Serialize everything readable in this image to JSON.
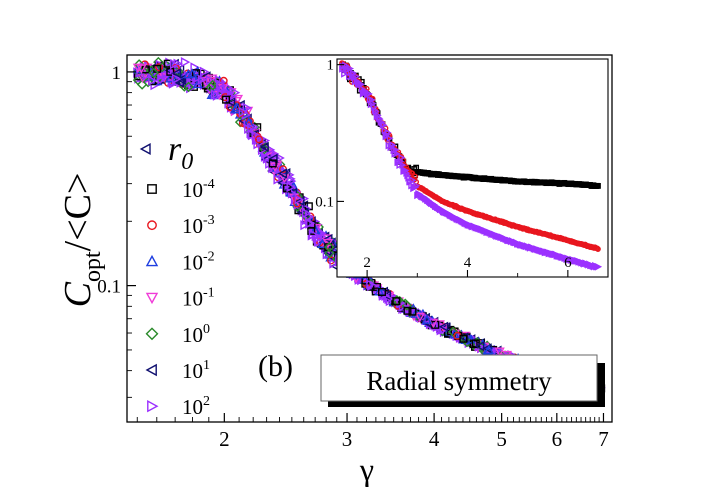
{
  "chart_data": [
    {
      "type": "scatter",
      "panel_label": "(b)",
      "annotation": "Radial symmetry",
      "xlabel": "γ",
      "ylabel": {
        "C": "C",
        "sub": "opt",
        "rest": "/<C>"
      },
      "xscale": "log",
      "yscale": "log",
      "xlim": [
        1.45,
        7.2
      ],
      "ylim": [
        0.023,
        1.2
      ],
      "xticks": [
        {
          "v": 2,
          "label": "2"
        },
        {
          "v": 3,
          "label": "3"
        },
        {
          "v": 4,
          "label": "4"
        },
        {
          "v": 5,
          "label": "5"
        },
        {
          "v": 6,
          "label": "6"
        },
        {
          "v": 7,
          "label": "7"
        }
      ],
      "yticks": [
        {
          "v": 1,
          "label": "1"
        },
        {
          "v": 0.1,
          "label": "0.1"
        }
      ],
      "legend": {
        "title": "r",
        "title_sub": "0",
        "placement": "left",
        "entries": [
          {
            "base": "10",
            "exp": "-4",
            "marker": "square",
            "color": "#000000"
          },
          {
            "base": "10",
            "exp": "-3",
            "marker": "circle",
            "color": "#e8161e"
          },
          {
            "base": "10",
            "exp": "-2",
            "marker": "triangle-up",
            "color": "#1f3fe0"
          },
          {
            "base": "10",
            "exp": "-1",
            "marker": "triangle-down",
            "color": "#f03cd8"
          },
          {
            "base": "10",
            "exp": "0",
            "marker": "diamond",
            "color": "#2a8a2a"
          },
          {
            "base": "10",
            "exp": "1",
            "marker": "triangle-left",
            "color": "#101070"
          },
          {
            "base": "10",
            "exp": "2",
            "marker": "triangle-right",
            "color": "#9b30ff"
          }
        ]
      },
      "collapse_curve": {
        "x": [
          1.5,
          1.7,
          1.85,
          2.0,
          2.15,
          2.3,
          2.5,
          2.7,
          3.0,
          3.5,
          4.0,
          5.0,
          6.0,
          7.0
        ],
        "y": [
          1.0,
          0.98,
          0.92,
          0.82,
          0.6,
          0.42,
          0.28,
          0.18,
          0.12,
          0.085,
          0.066,
          0.047,
          0.038,
          0.033
        ]
      }
    },
    {
      "type": "scatter",
      "role": "inset",
      "xscale": "linear",
      "yscale": "log",
      "xlim": [
        1.4,
        6.8
      ],
      "ylim": [
        0.028,
        1.1
      ],
      "xticks": [
        {
          "v": 2,
          "label": "2"
        },
        {
          "v": 4,
          "label": "4"
        },
        {
          "v": 6,
          "label": "6"
        }
      ],
      "yticks": [
        {
          "v": 1,
          "label": "1"
        },
        {
          "v": 0.1,
          "label": "0.1"
        }
      ],
      "series": [
        {
          "marker": "square",
          "color": "#000000",
          "x": [
            1.5,
            2.0,
            2.5,
            2.8,
            3.2,
            4.0,
            5.0,
            6.0,
            6.6
          ],
          "y": [
            1.0,
            0.62,
            0.25,
            0.17,
            0.16,
            0.15,
            0.14,
            0.135,
            0.13
          ]
        },
        {
          "marker": "circle",
          "color": "#e8161e",
          "x": [
            1.5,
            2.0,
            2.5,
            3.0,
            3.5,
            4.0,
            5.0,
            6.0,
            6.6
          ],
          "y": [
            1.0,
            0.62,
            0.25,
            0.13,
            0.1,
            0.085,
            0.065,
            0.052,
            0.045
          ]
        },
        {
          "marker": "triangle-right",
          "color": "#9b30ff",
          "x": [
            1.5,
            2.0,
            2.5,
            3.0,
            3.5,
            4.0,
            5.0,
            6.0,
            6.6
          ],
          "y": [
            1.0,
            0.62,
            0.25,
            0.115,
            0.085,
            0.068,
            0.049,
            0.038,
            0.033
          ]
        }
      ]
    }
  ]
}
